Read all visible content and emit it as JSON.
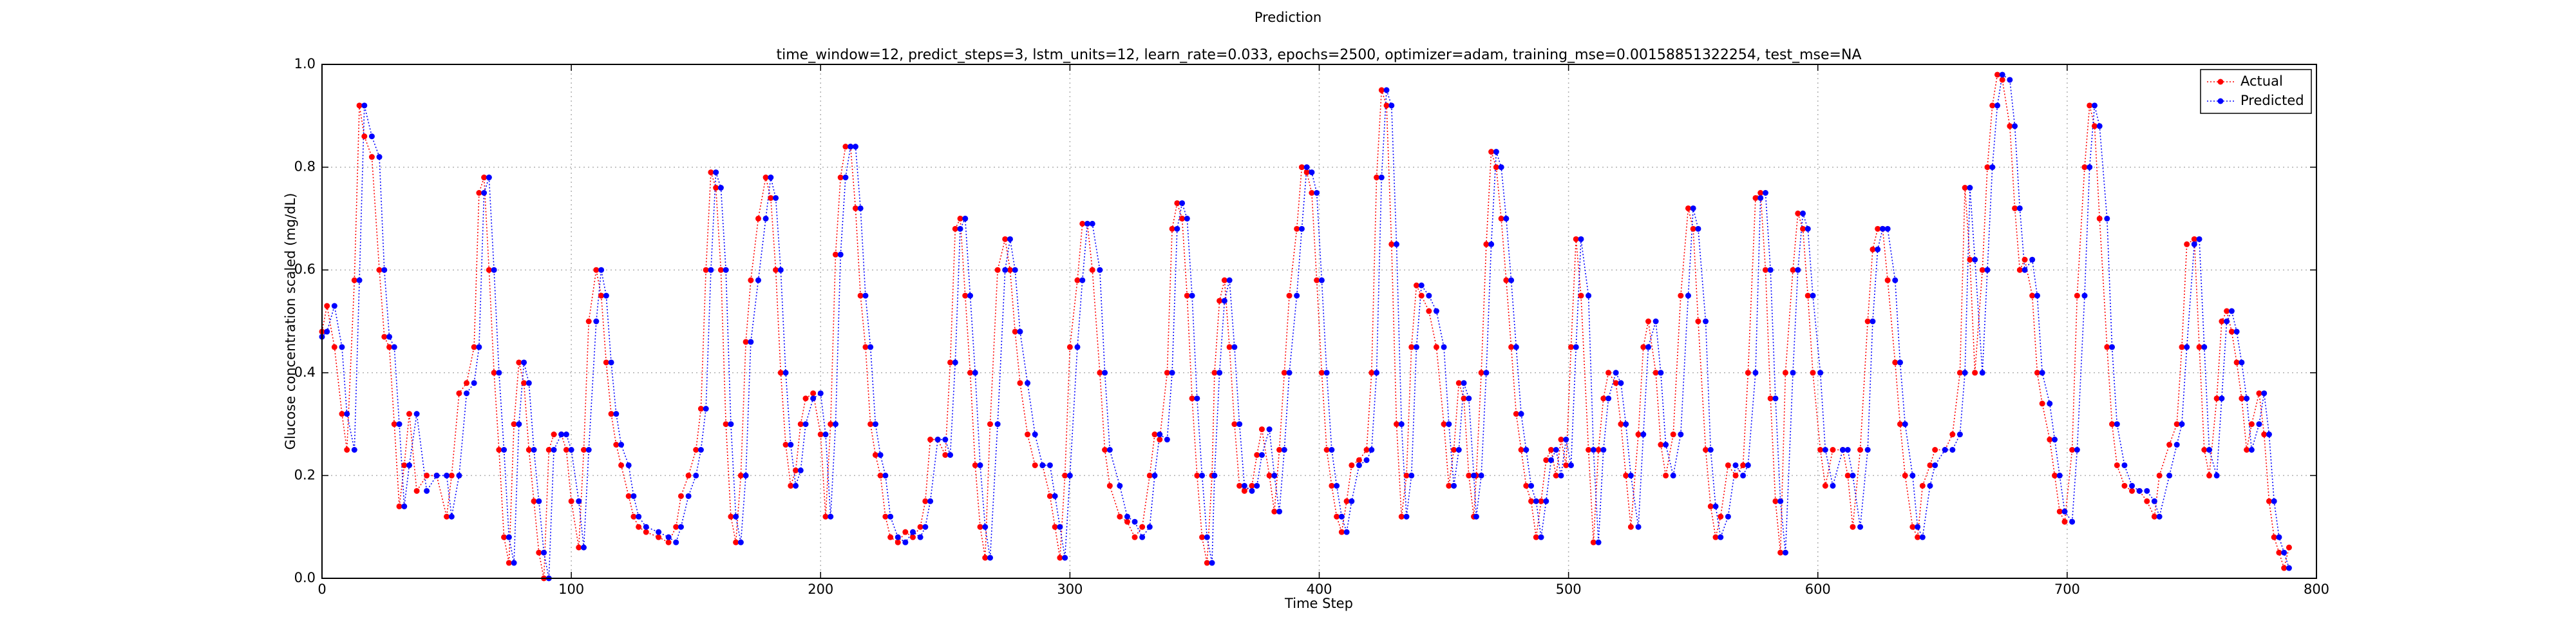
{
  "chart_data": {
    "type": "line",
    "title": "Prediction",
    "subtitle": "time_window=12, predict_steps=3, lstm_units=12, learn_rate=0.033, epochs=2500, optimizer=adam, training_mse=0.00158851322254, test_mse=NA",
    "x_label": "Time Step",
    "y_label": "Glucose concentration scaled (mg/dL)",
    "xlim": [
      0,
      800
    ],
    "xticks": [
      0,
      100,
      200,
      300,
      400,
      500,
      600,
      700,
      800
    ],
    "ylim": [
      0,
      1
    ],
    "yticks": [
      {
        "value": 0,
        "label": "0.0"
      },
      0.2,
      0.4,
      0.6,
      0.8,
      {
        "value": 1,
        "label": "1.0"
      }
    ],
    "grid": true,
    "legend": "upper right",
    "x": [
      0,
      2,
      5,
      8,
      10,
      13,
      15,
      17,
      20,
      23,
      25,
      27,
      29,
      31,
      33,
      35,
      38,
      42,
      46,
      50,
      52,
      55,
      58,
      61,
      63,
      65,
      67,
      69,
      71,
      73,
      75,
      77,
      79,
      81,
      83,
      85,
      87,
      89,
      91,
      93,
      96,
      98,
      100,
      103,
      105,
      107,
      110,
      112,
      114,
      116,
      118,
      120,
      123,
      125,
      127,
      130,
      135,
      139,
      142,
      144,
      147,
      150,
      152,
      154,
      156,
      158,
      160,
      162,
      164,
      166,
      168,
      170,
      172,
      175,
      178,
      180,
      182,
      184,
      186,
      188,
      190,
      192,
      194,
      197,
      200,
      202,
      204,
      206,
      208,
      210,
      212,
      214,
      216,
      218,
      220,
      222,
      224,
      226,
      228,
      231,
      234,
      237,
      240,
      242,
      244,
      247,
      250,
      252,
      254,
      256,
      258,
      260,
      262,
      264,
      266,
      268,
      271,
      274,
      276,
      278,
      280,
      283,
      286,
      289,
      292,
      294,
      296,
      298,
      300,
      303,
      305,
      307,
      309,
      312,
      314,
      316,
      320,
      323,
      326,
      329,
      332,
      334,
      336,
      339,
      341,
      343,
      345,
      347,
      349,
      351,
      353,
      355,
      357,
      358,
      360,
      362,
      364,
      366,
      368,
      370,
      373,
      375,
      377,
      380,
      382,
      384,
      386,
      388,
      391,
      393,
      395,
      397,
      399,
      401,
      403,
      405,
      407,
      409,
      411,
      413,
      416,
      419,
      421,
      423,
      425,
      427,
      429,
      431,
      433,
      435,
      437,
      439,
      441,
      444,
      447,
      450,
      452,
      454,
      456,
      458,
      460,
      462,
      463,
      465,
      467,
      469,
      471,
      473,
      475,
      477,
      479,
      481,
      483,
      485,
      487,
      489,
      491,
      493,
      495,
      497,
      499,
      501,
      503,
      505,
      508,
      510,
      512,
      514,
      516,
      519,
      521,
      523,
      525,
      528,
      530,
      532,
      535,
      537,
      539,
      542,
      545,
      548,
      550,
      552,
      555,
      557,
      559,
      561,
      564,
      567,
      570,
      572,
      575,
      577,
      579,
      581,
      583,
      585,
      587,
      590,
      592,
      594,
      596,
      598,
      601,
      603,
      606,
      610,
      612,
      614,
      617,
      620,
      622,
      624,
      626,
      628,
      631,
      633,
      635,
      638,
      640,
      642,
      645,
      647,
      651,
      654,
      657,
      659,
      661,
      663,
      666,
      668,
      670,
      672,
      674,
      677,
      679,
      681,
      683,
      686,
      688,
      690,
      693,
      695,
      697,
      699,
      702,
      704,
      707,
      709,
      711,
      713,
      716,
      718,
      720,
      723,
      726,
      729,
      732,
      735,
      737,
      741,
      744,
      746,
      748,
      751,
      753,
      755,
      757,
      760,
      762,
      764,
      766,
      768,
      770,
      772,
      774,
      777,
      779,
      781,
      783,
      785,
      787,
      789
    ],
    "series": [
      {
        "name": "Actual",
        "color": "#ff0000",
        "values": [
          0.48,
          0.53,
          0.45,
          0.32,
          0.25,
          0.58,
          0.92,
          0.86,
          0.82,
          0.6,
          0.47,
          0.45,
          0.3,
          0.14,
          0.22,
          0.32,
          0.17,
          0.2,
          0.2,
          0.12,
          0.2,
          0.36,
          0.38,
          0.45,
          0.75,
          0.78,
          0.6,
          0.4,
          0.25,
          0.08,
          0.03,
          0.3,
          0.42,
          0.38,
          0.25,
          0.15,
          0.05,
          0.0,
          0.25,
          0.28,
          0.28,
          0.25,
          0.15,
          0.06,
          0.25,
          0.5,
          0.6,
          0.55,
          0.42,
          0.32,
          0.26,
          0.22,
          0.16,
          0.12,
          0.1,
          0.09,
          0.08,
          0.07,
          0.1,
          0.16,
          0.2,
          0.25,
          0.33,
          0.6,
          0.79,
          0.76,
          0.6,
          0.3,
          0.12,
          0.07,
          0.2,
          0.46,
          0.58,
          0.7,
          0.78,
          0.74,
          0.6,
          0.4,
          0.26,
          0.18,
          0.21,
          0.3,
          0.35,
          0.36,
          0.28,
          0.12,
          0.3,
          0.63,
          0.78,
          0.84,
          0.84,
          0.72,
          0.55,
          0.45,
          0.3,
          0.24,
          0.2,
          0.12,
          0.08,
          0.07,
          0.09,
          0.08,
          0.1,
          0.15,
          0.27,
          0.27,
          0.24,
          0.42,
          0.68,
          0.7,
          0.55,
          0.4,
          0.22,
          0.1,
          0.04,
          0.3,
          0.6,
          0.66,
          0.6,
          0.48,
          0.38,
          0.28,
          0.22,
          0.22,
          0.16,
          0.1,
          0.04,
          0.2,
          0.45,
          0.58,
          0.69,
          0.69,
          0.6,
          0.4,
          0.25,
          0.18,
          0.12,
          0.11,
          0.08,
          0.1,
          0.2,
          0.28,
          0.27,
          0.4,
          0.68,
          0.73,
          0.7,
          0.55,
          0.35,
          0.2,
          0.08,
          0.03,
          0.2,
          0.4,
          0.54,
          0.58,
          0.45,
          0.3,
          0.18,
          0.17,
          0.18,
          0.24,
          0.29,
          0.2,
          0.13,
          0.25,
          0.4,
          0.55,
          0.68,
          0.8,
          0.79,
          0.75,
          0.58,
          0.4,
          0.25,
          0.18,
          0.12,
          0.09,
          0.15,
          0.22,
          0.23,
          0.25,
          0.4,
          0.78,
          0.95,
          0.92,
          0.65,
          0.3,
          0.12,
          0.2,
          0.45,
          0.57,
          0.55,
          0.52,
          0.45,
          0.3,
          0.18,
          0.25,
          0.38,
          0.35,
          0.2,
          0.12,
          0.2,
          0.4,
          0.65,
          0.83,
          0.8,
          0.7,
          0.58,
          0.45,
          0.32,
          0.25,
          0.18,
          0.15,
          0.08,
          0.15,
          0.23,
          0.25,
          0.2,
          0.27,
          0.22,
          0.45,
          0.66,
          0.55,
          0.25,
          0.07,
          0.25,
          0.35,
          0.4,
          0.38,
          0.3,
          0.2,
          0.1,
          0.28,
          0.45,
          0.5,
          0.4,
          0.26,
          0.2,
          0.28,
          0.55,
          0.72,
          0.68,
          0.5,
          0.25,
          0.14,
          0.08,
          0.12,
          0.22,
          0.2,
          0.22,
          0.4,
          0.74,
          0.75,
          0.6,
          0.35,
          0.15,
          0.05,
          0.4,
          0.6,
          0.71,
          0.68,
          0.55,
          0.4,
          0.25,
          0.18,
          0.25,
          0.25,
          0.2,
          0.1,
          0.25,
          0.5,
          0.64,
          0.68,
          0.68,
          0.58,
          0.42,
          0.3,
          0.2,
          0.1,
          0.08,
          0.18,
          0.22,
          0.25,
          0.25,
          0.28,
          0.4,
          0.76,
          0.62,
          0.4,
          0.6,
          0.8,
          0.92,
          0.98,
          0.97,
          0.88,
          0.72,
          0.6,
          0.62,
          0.55,
          0.4,
          0.34,
          0.27,
          0.2,
          0.13,
          0.11,
          0.25,
          0.55,
          0.8,
          0.92,
          0.88,
          0.7,
          0.45,
          0.3,
          0.22,
          0.18,
          0.17,
          0.17,
          0.15,
          0.12,
          0.2,
          0.26,
          0.3,
          0.45,
          0.65,
          0.66,
          0.45,
          0.25,
          0.2,
          0.35,
          0.5,
          0.52,
          0.48,
          0.42,
          0.35,
          0.25,
          0.3,
          0.36,
          0.28,
          0.15,
          0.08,
          0.05,
          0.02,
          0.06
        ]
      },
      {
        "name": "Predicted",
        "color": "#0000ff",
        "values": [
          0.47,
          0.48,
          0.53,
          0.45,
          0.32,
          0.25,
          0.58,
          0.92,
          0.86,
          0.82,
          0.6,
          0.47,
          0.45,
          0.3,
          0.14,
          0.22,
          0.32,
          0.17,
          0.2,
          0.2,
          0.12,
          0.2,
          0.36,
          0.38,
          0.45,
          0.75,
          0.78,
          0.6,
          0.4,
          0.25,
          0.08,
          0.03,
          0.3,
          0.42,
          0.38,
          0.25,
          0.15,
          0.05,
          0.0,
          0.25,
          0.28,
          0.28,
          0.25,
          0.15,
          0.06,
          0.25,
          0.5,
          0.6,
          0.55,
          0.42,
          0.32,
          0.26,
          0.22,
          0.16,
          0.12,
          0.1,
          0.09,
          0.08,
          0.07,
          0.1,
          0.16,
          0.2,
          0.25,
          0.33,
          0.6,
          0.79,
          0.76,
          0.6,
          0.3,
          0.12,
          0.07,
          0.2,
          0.46,
          0.58,
          0.7,
          0.78,
          0.74,
          0.6,
          0.4,
          0.26,
          0.18,
          0.21,
          0.3,
          0.35,
          0.36,
          0.28,
          0.12,
          0.3,
          0.63,
          0.78,
          0.84,
          0.84,
          0.72,
          0.55,
          0.45,
          0.3,
          0.24,
          0.2,
          0.12,
          0.08,
          0.07,
          0.09,
          0.08,
          0.1,
          0.15,
          0.27,
          0.27,
          0.24,
          0.42,
          0.68,
          0.7,
          0.55,
          0.4,
          0.22,
          0.1,
          0.04,
          0.3,
          0.6,
          0.66,
          0.6,
          0.48,
          0.38,
          0.28,
          0.22,
          0.22,
          0.16,
          0.1,
          0.04,
          0.2,
          0.45,
          0.58,
          0.69,
          0.69,
          0.6,
          0.4,
          0.25,
          0.18,
          0.12,
          0.11,
          0.08,
          0.1,
          0.2,
          0.28,
          0.27,
          0.4,
          0.68,
          0.73,
          0.7,
          0.55,
          0.35,
          0.2,
          0.08,
          0.03,
          0.2,
          0.4,
          0.54,
          0.58,
          0.45,
          0.3,
          0.18,
          0.17,
          0.18,
          0.24,
          0.29,
          0.2,
          0.13,
          0.25,
          0.4,
          0.55,
          0.68,
          0.8,
          0.79,
          0.75,
          0.58,
          0.4,
          0.25,
          0.18,
          0.12,
          0.09,
          0.15,
          0.22,
          0.23,
          0.25,
          0.4,
          0.78,
          0.95,
          0.92,
          0.65,
          0.3,
          0.12,
          0.2,
          0.45,
          0.57,
          0.55,
          0.52,
          0.45,
          0.3,
          0.18,
          0.25,
          0.38,
          0.35,
          0.2,
          0.12,
          0.2,
          0.4,
          0.65,
          0.83,
          0.8,
          0.7,
          0.58,
          0.45,
          0.32,
          0.25,
          0.18,
          0.15,
          0.08,
          0.15,
          0.23,
          0.25,
          0.2,
          0.27,
          0.22,
          0.45,
          0.66,
          0.55,
          0.25,
          0.07,
          0.25,
          0.35,
          0.4,
          0.38,
          0.3,
          0.2,
          0.1,
          0.28,
          0.45,
          0.5,
          0.4,
          0.26,
          0.2,
          0.28,
          0.55,
          0.72,
          0.68,
          0.5,
          0.25,
          0.14,
          0.08,
          0.12,
          0.22,
          0.2,
          0.22,
          0.4,
          0.74,
          0.75,
          0.6,
          0.35,
          0.15,
          0.05,
          0.4,
          0.6,
          0.71,
          0.68,
          0.55,
          0.4,
          0.25,
          0.18,
          0.25,
          0.25,
          0.2,
          0.1,
          0.25,
          0.5,
          0.64,
          0.68,
          0.68,
          0.58,
          0.42,
          0.3,
          0.2,
          0.1,
          0.08,
          0.18,
          0.22,
          0.25,
          0.25,
          0.28,
          0.4,
          0.76,
          0.62,
          0.4,
          0.6,
          0.8,
          0.92,
          0.98,
          0.97,
          0.88,
          0.72,
          0.6,
          0.62,
          0.55,
          0.4,
          0.34,
          0.27,
          0.2,
          0.13,
          0.11,
          0.25,
          0.55,
          0.8,
          0.92,
          0.88,
          0.7,
          0.45,
          0.3,
          0.22,
          0.18,
          0.17,
          0.17,
          0.15,
          0.12,
          0.2,
          0.26,
          0.3,
          0.45,
          0.65,
          0.66,
          0.45,
          0.25,
          0.2,
          0.35,
          0.5,
          0.52,
          0.48,
          0.42,
          0.35,
          0.25,
          0.3,
          0.36,
          0.28,
          0.15,
          0.08,
          0.05,
          0.02
        ]
      }
    ]
  }
}
